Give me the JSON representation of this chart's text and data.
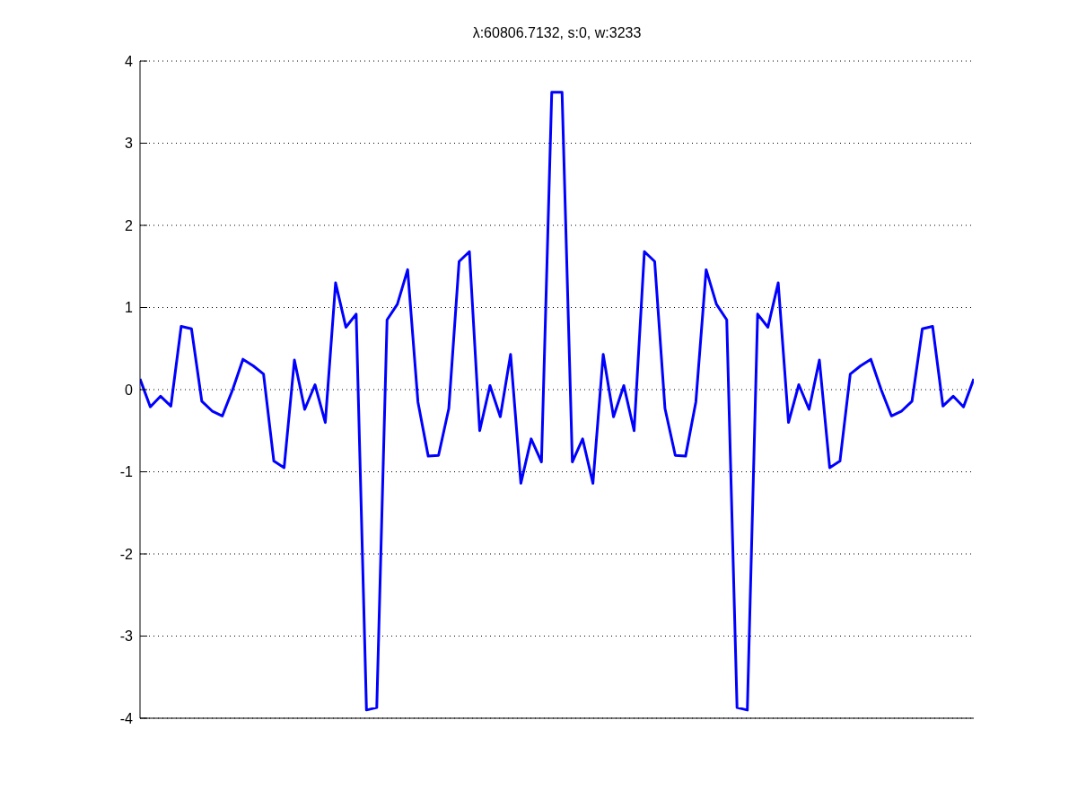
{
  "chart_data": {
    "type": "line",
    "title": "λ:60806.7132, s:0, w:3233",
    "categories": [
      null,
      null,
      null,
      null,
      null,
      null,
      null,
      null,
      null,
      null,
      null,
      null,
      null,
      null,
      null,
      null,
      null,
      null,
      null,
      null,
      null,
      null,
      null,
      null,
      null,
      null,
      null,
      null,
      null,
      null,
      null,
      null,
      null,
      null,
      null,
      null,
      null,
      null,
      null,
      null,
      null,
      null,
      null,
      null,
      null,
      null,
      null,
      null,
      null,
      null,
      null,
      null,
      null,
      null,
      null,
      null,
      null,
      null,
      null,
      null,
      null,
      null,
      null,
      null,
      null,
      null,
      null,
      null,
      null,
      null,
      null,
      null,
      null,
      null,
      null,
      null,
      null,
      null,
      null,
      null,
      null,
      null
    ],
    "series": [
      {
        "color": "#0000ff",
        "values": [
          0.13,
          -0.21,
          -0.08,
          -0.2,
          0.77,
          0.74,
          -0.14,
          -0.26,
          -0.32,
          0.0,
          0.37,
          0.29,
          0.19,
          -0.87,
          -0.95,
          0.36,
          -0.24,
          0.06,
          -0.4,
          1.3,
          0.76,
          0.92,
          -3.9,
          -3.87,
          0.85,
          1.04,
          1.46,
          -0.15,
          -0.81,
          -0.8,
          -0.23,
          1.56,
          1.68,
          -0.5,
          0.05,
          -0.33,
          0.43,
          -1.14,
          -0.6,
          -0.88,
          3.62,
          3.62,
          -0.88,
          -0.6,
          -1.14,
          0.43,
          -0.33,
          0.05,
          -0.5,
          1.68,
          1.56,
          -0.23,
          -0.8,
          -0.81,
          -0.15,
          1.46,
          1.04,
          0.85,
          -3.87,
          -3.9,
          0.92,
          0.76,
          1.3,
          -0.4,
          0.06,
          -0.24,
          0.36,
          -0.95,
          -0.87,
          0.19,
          0.29,
          0.37,
          0.0,
          -0.32,
          -0.26,
          -0.14,
          0.74,
          0.77,
          -0.2,
          -0.08,
          -0.21,
          0.13
        ]
      }
    ],
    "ylim": [
      -4,
      4
    ],
    "yticks": [
      -4,
      -3,
      -2,
      -1,
      0,
      1,
      2,
      3,
      4
    ],
    "grid": "y",
    "line_style": "solid"
  }
}
